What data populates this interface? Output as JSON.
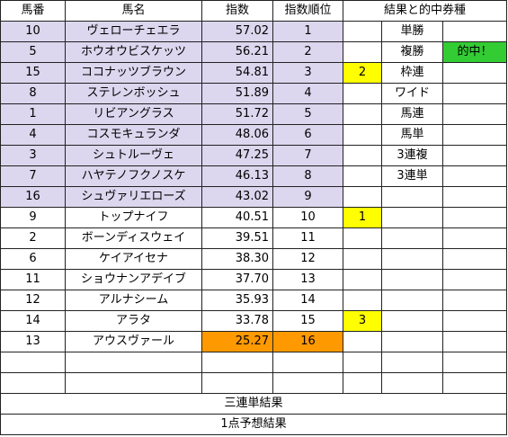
{
  "colors": {
    "lavender": "#dcd6ee",
    "yellow": "#ffff00",
    "orange": "#ff9900",
    "green": "#33cc33",
    "white": "#ffffff"
  },
  "header": {
    "num": "馬番",
    "name": "馬名",
    "score": "指数",
    "rank": "指数順位",
    "result": "結果と的中券種"
  },
  "rows": [
    {
      "num": "10",
      "name": "ヴェローチェエラ",
      "score": "57.02",
      "rank": "1",
      "bet": "",
      "type": "単勝",
      "hit": ""
    },
    {
      "num": "5",
      "name": "ホウオウビスケッツ",
      "score": "56.21",
      "rank": "2",
      "bet": "",
      "type": "複勝",
      "hit": "的中！"
    },
    {
      "num": "15",
      "name": "ココナッツブラウン",
      "score": "54.81",
      "rank": "3",
      "bet": "2",
      "type": "枠連",
      "hit": ""
    },
    {
      "num": "8",
      "name": "ステレンボッシュ",
      "score": "51.89",
      "rank": "4",
      "bet": "",
      "type": "ワイド",
      "hit": ""
    },
    {
      "num": "1",
      "name": "リビアングラス",
      "score": "51.72",
      "rank": "5",
      "bet": "",
      "type": "馬連",
      "hit": ""
    },
    {
      "num": "4",
      "name": "コスモキュランダ",
      "score": "48.06",
      "rank": "6",
      "bet": "",
      "type": "馬単",
      "hit": ""
    },
    {
      "num": "3",
      "name": "シュトルーヴェ",
      "score": "47.25",
      "rank": "7",
      "bet": "",
      "type": "3連複",
      "hit": ""
    },
    {
      "num": "7",
      "name": "ハヤテノフクノスケ",
      "score": "46.13",
      "rank": "8",
      "bet": "",
      "type": "3連単",
      "hit": ""
    },
    {
      "num": "16",
      "name": "シュヴァリエローズ",
      "score": "43.02",
      "rank": "9",
      "bet": "",
      "type": "",
      "hit": ""
    },
    {
      "num": "9",
      "name": "トップナイフ",
      "score": "40.51",
      "rank": "10",
      "bet": "1",
      "type": "",
      "hit": ""
    },
    {
      "num": "2",
      "name": "ボーンディスウェイ",
      "score": "39.51",
      "rank": "11",
      "bet": "",
      "type": "",
      "hit": ""
    },
    {
      "num": "6",
      "name": "ケイアイセナ",
      "score": "38.30",
      "rank": "12",
      "bet": "",
      "type": "",
      "hit": ""
    },
    {
      "num": "11",
      "name": "ショウナンアデイブ",
      "score": "37.70",
      "rank": "13",
      "bet": "",
      "type": "",
      "hit": ""
    },
    {
      "num": "12",
      "name": "アルナシーム",
      "score": "35.93",
      "rank": "14",
      "bet": "",
      "type": "",
      "hit": ""
    },
    {
      "num": "14",
      "name": "アラタ",
      "score": "33.78",
      "rank": "15",
      "bet": "3",
      "type": "",
      "hit": ""
    },
    {
      "num": "13",
      "name": "アウスヴァール",
      "score": "25.27",
      "rank": "16",
      "bet": "",
      "type": "",
      "hit": ""
    },
    {
      "num": "",
      "name": "",
      "score": "",
      "rank": "",
      "bet": "",
      "type": "",
      "hit": ""
    },
    {
      "num": "",
      "name": "",
      "score": "",
      "rank": "",
      "bet": "",
      "type": "",
      "hit": ""
    }
  ],
  "footer": {
    "trifecta_result": "三連単結果",
    "one_point_result": "1点予想結果"
  }
}
